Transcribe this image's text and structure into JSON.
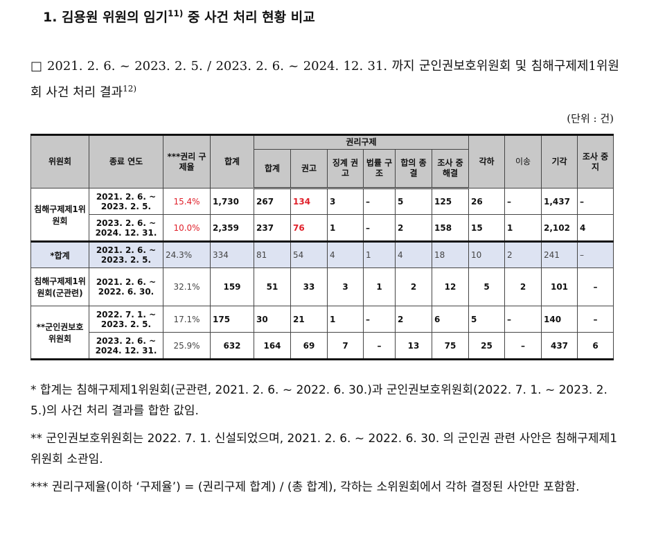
{
  "title": "1. 김용원 위원의 임기",
  "title_sup": "11)",
  "title_rest": " 중 사건 처리 현황 비교",
  "intro": "□ 2021. 2. 6. ~ 2023. 2. 5. / 2023. 2. 6. ~ 2024. 12. 31. 까지 군인권보호위원회 및 침해구제제1위원회 사건 처리 결과",
  "intro_sup": "12)",
  "unit": "(단위 : 건)",
  "headers": {
    "committee": "위원회",
    "period": "종료 연도",
    "rate": "***권리 구제율",
    "total": "합계",
    "remedy": "권리구제",
    "sub": [
      "합계",
      "권고",
      "징계 권고",
      "법률 구조",
      "합의 종결",
      "조사 중해결"
    ],
    "dismiss": "각하",
    "transfer": "이송",
    "reject": "기각",
    "stop": "조사 중지"
  },
  "rows": [
    {
      "committee": "침해구제제1위원회",
      "period": "2021. 2. 6. ~ 2023. 2. 5.",
      "cells": [
        "15.4%",
        "1,730",
        "267",
        "134",
        "3",
        "–",
        "5",
        "125",
        "26",
        "–",
        "1,437",
        "–"
      ]
    },
    {
      "period": "2023. 2. 6. ~ 2024. 12. 31.",
      "cells": [
        "10.0%",
        "2,359",
        "237",
        "76",
        "1",
        "–",
        "2",
        "158",
        "15",
        "1",
        "2,102",
        "4"
      ]
    },
    {
      "committee": "*합계",
      "period": "2021. 2. 6. ~ 2023. 2. 5.",
      "cells": [
        "24.3%",
        "334",
        "81",
        "54",
        "4",
        "1",
        "4",
        "18",
        "10",
        "2",
        "241",
        "–"
      ]
    },
    {
      "committee": "침해구제제1위원회(군관련)",
      "period": "2021. 2. 6. ~ 2022. 6. 30.",
      "cells": [
        "32.1%",
        "159",
        "51",
        "33",
        "3",
        "1",
        "2",
        "12",
        "5",
        "2",
        "101",
        "–"
      ]
    },
    {
      "committee": "**군인권보호위원회",
      "period": "2022. 7. 1. ~ 2023. 2. 5.",
      "cells": [
        "17.1%",
        "175",
        "30",
        "21",
        "1",
        "–",
        "2",
        "6",
        "5",
        "–",
        "140",
        "–"
      ]
    },
    {
      "period": "2023. 2. 6. ~ 2024. 12. 31.",
      "cells": [
        "25.9%",
        "632",
        "164",
        "69",
        "7",
        "–",
        "13",
        "75",
        "25",
        "–",
        "437",
        "6"
      ]
    }
  ],
  "footnotes": [
    "* 합계는 침해구제제1위원회(군관련, 2021. 2. 6. ~ 2022. 6. 30.)과 군인권보호위원회(2022. 7. 1. ~ 2023. 2. 5.)의 사건 처리 결과를 합한 값임.",
    "** 군인권보호위원회는 2022. 7. 1. 신설되었으며, 2021. 2. 6. ~ 2022. 6. 30. 의 군인권 관련 사안은 침해구제제1위원회 소관임.",
    "*** 권리구제율(이하 ‘구제율’) = (권리구제 합계) / (총 합계), 각하는 소위원회에서 각하 결정된 사안만 포함함."
  ]
}
